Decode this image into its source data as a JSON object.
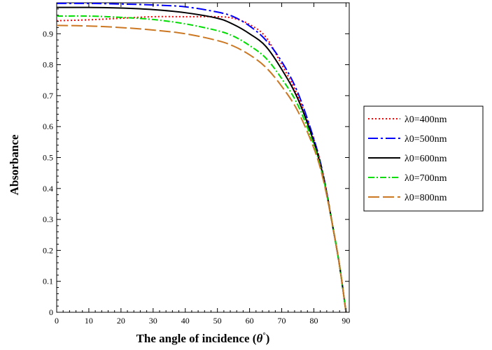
{
  "chart_data": {
    "type": "line",
    "xlabel": "The angle of incidence (θ°)",
    "xlabel_main": "The angle of incidence (",
    "xlabel_symbol": "θ",
    "xlabel_degree": "°",
    "xlabel_close": ")",
    "ylabel": "Absorbance",
    "xlim": [
      0,
      91
    ],
    "ylim": [
      0,
      1.0
    ],
    "x_ticks": [
      0,
      10,
      20,
      30,
      40,
      50,
      60,
      70,
      80,
      90
    ],
    "x_tick_labels": [
      "0",
      "10",
      "20",
      "30",
      "40",
      "50",
      "60",
      "70",
      "80",
      "90"
    ],
    "y_ticks": [
      0,
      0.1,
      0.2,
      0.3,
      0.4,
      0.5,
      0.6,
      0.7,
      0.8,
      0.9
    ],
    "y_tick_labels": [
      "0",
      "0.1",
      "0.2",
      "0.3",
      "0.4",
      "0.5",
      "0.6",
      "0.7",
      "0.8",
      "0.9"
    ],
    "grid": false,
    "legend_position": "right",
    "x": [
      0,
      10,
      20,
      30,
      40,
      50,
      55,
      60,
      65,
      70,
      75,
      80,
      83,
      86,
      88,
      90
    ],
    "series": [
      {
        "name": "λ0=400nm",
        "color": "#ff0000",
        "dash": "2,3",
        "values": [
          0.942,
          0.945,
          0.95,
          0.955,
          0.955,
          0.955,
          0.95,
          0.93,
          0.89,
          0.8,
          0.7,
          0.56,
          0.44,
          0.27,
          0.15,
          0.0
        ]
      },
      {
        "name": "λ0=500nm",
        "color": "#0000ff",
        "dash": "14,4,3,4",
        "values": [
          0.998,
          0.998,
          0.996,
          0.993,
          0.987,
          0.97,
          0.955,
          0.925,
          0.88,
          0.81,
          0.71,
          0.56,
          0.44,
          0.27,
          0.15,
          0.0
        ]
      },
      {
        "name": "λ0=600nm",
        "color": "#000000",
        "dash": "",
        "values": [
          0.985,
          0.985,
          0.983,
          0.978,
          0.968,
          0.95,
          0.93,
          0.9,
          0.86,
          0.785,
          0.69,
          0.55,
          0.435,
          0.27,
          0.15,
          0.0
        ]
      },
      {
        "name": "λ0=700nm",
        "color": "#00dd00",
        "dash": "9,3,2,3",
        "values": [
          0.957,
          0.957,
          0.953,
          0.946,
          0.932,
          0.91,
          0.892,
          0.862,
          0.822,
          0.755,
          0.67,
          0.54,
          0.43,
          0.27,
          0.15,
          0.0
        ]
      },
      {
        "name": "λ0=800nm",
        "color": "#cc7722",
        "dash": "16,5",
        "values": [
          0.927,
          0.925,
          0.92,
          0.912,
          0.9,
          0.878,
          0.86,
          0.832,
          0.792,
          0.73,
          0.65,
          0.53,
          0.425,
          0.27,
          0.15,
          0.0
        ]
      }
    ]
  }
}
